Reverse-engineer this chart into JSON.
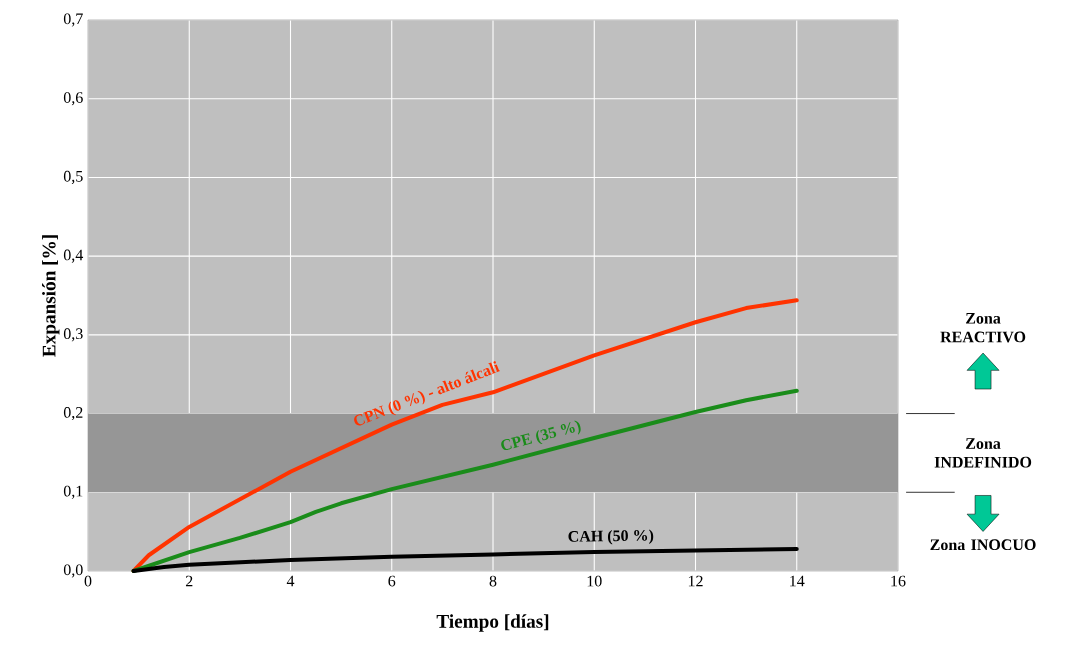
{
  "chart_data": {
    "type": "line",
    "xlabel": "Tiempo [días]",
    "ylabel": "Expansión [%]",
    "xlim": [
      0,
      16
    ],
    "xticks": [
      0,
      2,
      4,
      6,
      8,
      10,
      12,
      14,
      16
    ],
    "ylim": [
      0,
      0.7
    ],
    "yticks": [
      {
        "value": 0,
        "label": "0,0"
      },
      {
        "value": 0.1,
        "label": "0,1"
      },
      {
        "value": 0.2,
        "label": "0,2"
      },
      {
        "value": 0.3,
        "label": "0,3"
      },
      {
        "value": 0.4,
        "label": "0,4"
      },
      {
        "value": 0.5,
        "label": "0,5"
      },
      {
        "value": 0.6,
        "label": "0,6"
      },
      {
        "value": 0.7,
        "label": "0,7"
      }
    ],
    "grid": true,
    "marker": "none",
    "line_style": "solid",
    "series": [
      {
        "name": "CPN (0 %) - alto álcali",
        "color": "#ff3300",
        "x": [
          0.9,
          1.2,
          2,
          4,
          6,
          7,
          8,
          10,
          12,
          13,
          14
        ],
        "values": [
          0,
          0.02,
          0.056,
          0.126,
          0.186,
          0.211,
          0.227,
          0.274,
          0.316,
          0.334,
          0.344
        ]
      },
      {
        "name": "CPE (35 %)",
        "color": "#1a8c1a",
        "x": [
          0.9,
          2,
          3,
          4,
          4.5,
          5,
          6,
          8,
          10,
          12,
          13,
          14
        ],
        "values": [
          0,
          0.024,
          0.042,
          0.062,
          0.075,
          0.086,
          0.104,
          0.135,
          0.169,
          0.202,
          0.217,
          0.229
        ]
      },
      {
        "name": "CAH (50 %)",
        "color": "#000000",
        "x": [
          0.9,
          1.5,
          2,
          4,
          6,
          8,
          10,
          12,
          14
        ],
        "values": [
          0,
          0.005,
          0.008,
          0.014,
          0.018,
          0.021,
          0.024,
          0.026,
          0.028
        ]
      }
    ],
    "bands": [
      {
        "axis": "y",
        "from": 0.1,
        "to": 0.2,
        "label": "Zona INDEFINIDO",
        "color": "#969696"
      }
    ],
    "annotations": [
      "Zona REACTIVO",
      "Zona INOCUO"
    ]
  }
}
